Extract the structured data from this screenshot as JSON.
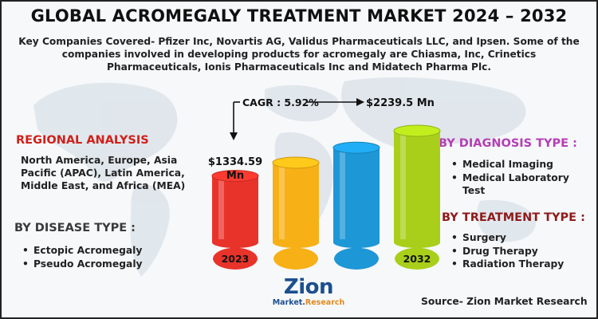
{
  "title": "GLOBAL ACROMEGALY TREATMENT MARKET 2024 – 2032",
  "intro": "Key Companies Covered- Pfizer Inc, Novartis AG, Validus Pharmaceuticals LLC, and Ipsen. Some of the companies involved in developing products for acromegaly are Chiasma, Inc, Crinetics Pharmaceuticals, Ionis Pharmaceuticals Inc and Midatech Pharma Plc.",
  "regional": {
    "heading": "REGIONAL ANALYSIS",
    "text": "North America, Europe, Asia Pacific (APAC), Latin America, Middle East, and Africa (MEA)"
  },
  "disease": {
    "heading": "BY DISEASE TYPE :",
    "items": [
      "Ectopic Acromegaly",
      "Pseudo Acromegaly"
    ]
  },
  "diagnosis": {
    "heading": "BY DIAGNOSIS TYPE :",
    "items": [
      "Medical Imaging",
      "Medical Laboratory Test"
    ]
  },
  "treatment": {
    "heading": "BY TREATMENT TYPE :",
    "items": [
      "Surgery",
      "Drug Therapy",
      "Radiation Therapy"
    ]
  },
  "chart_data": {
    "type": "bar",
    "categories": [
      "2023",
      "",
      "",
      "2032"
    ],
    "values": [
      1334.59,
      1600,
      1900,
      2239.5
    ],
    "start_label": "$1334.59 Mn",
    "end_label": "$2239.5 Mn",
    "cagr_label": "CAGR : 5.92%",
    "colors": [
      "#e8332a",
      "#f7b016",
      "#1d97d6",
      "#a9cf1a"
    ]
  },
  "logo": {
    "word": "Zion",
    "sub_a": "Market.",
    "sub_b": "Research"
  },
  "source": "Source- Zion Market Research"
}
